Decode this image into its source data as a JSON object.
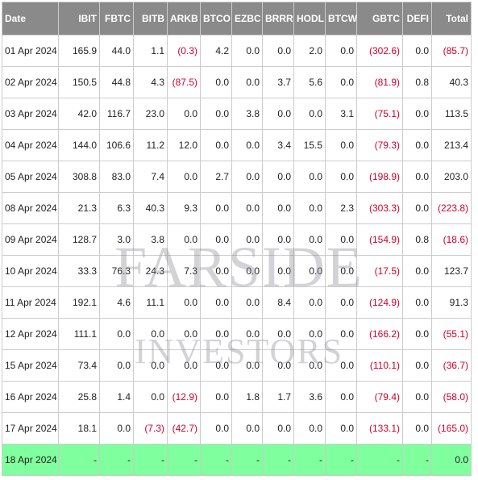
{
  "table": {
    "headers": [
      "Date",
      "IBIT",
      "FBTC",
      "BITB",
      "ARKB",
      "BTCO",
      "EZBC",
      "BRRR",
      "HODL",
      "BTCW",
      "GBTC",
      "DEFI",
      "Total"
    ],
    "rows": [
      [
        "01 Apr 2024",
        "165.9",
        "44.0",
        "1.1",
        "(0.3)",
        "4.2",
        "0.0",
        "0.0",
        "2.0",
        "0.0",
        "(302.6)",
        "0.0",
        "(85.7)"
      ],
      [
        "02 Apr 2024",
        "150.5",
        "44.8",
        "4.3",
        "(87.5)",
        "0.0",
        "0.0",
        "3.7",
        "5.6",
        "0.0",
        "(81.9)",
        "0.8",
        "40.3"
      ],
      [
        "03 Apr 2024",
        "42.0",
        "116.7",
        "23.0",
        "0.0",
        "0.0",
        "3.8",
        "0.0",
        "0.0",
        "3.1",
        "(75.1)",
        "0.0",
        "113.5"
      ],
      [
        "04 Apr 2024",
        "144.0",
        "106.6",
        "11.2",
        "12.0",
        "0.0",
        "0.0",
        "3.4",
        "15.5",
        "0.0",
        "(79.3)",
        "0.0",
        "213.4"
      ],
      [
        "05 Apr 2024",
        "308.8",
        "83.0",
        "7.4",
        "0.0",
        "2.7",
        "0.0",
        "0.0",
        "0.0",
        "0.0",
        "(198.9)",
        "0.0",
        "203.0"
      ],
      [
        "08 Apr 2024",
        "21.3",
        "6.3",
        "40.3",
        "9.3",
        "0.0",
        "0.0",
        "0.0",
        "0.0",
        "2.3",
        "(303.3)",
        "0.0",
        "(223.8)"
      ],
      [
        "09 Apr 2024",
        "128.7",
        "3.0",
        "3.8",
        "0.0",
        "0.0",
        "0.0",
        "0.0",
        "0.0",
        "0.0",
        "(154.9)",
        "0.8",
        "(18.6)"
      ],
      [
        "10 Apr 2024",
        "33.3",
        "76.3",
        "24.3",
        "7.3",
        "0.0",
        "0.0",
        "0.0",
        "0.0",
        "0.0",
        "(17.5)",
        "0.0",
        "123.7"
      ],
      [
        "11 Apr 2024",
        "192.1",
        "4.6",
        "11.1",
        "0.0",
        "0.0",
        "0.0",
        "8.4",
        "0.0",
        "0.0",
        "(124.9)",
        "0.0",
        "91.3"
      ],
      [
        "12 Apr 2024",
        "111.1",
        "0.0",
        "0.0",
        "0.0",
        "0.0",
        "0.0",
        "0.0",
        "0.0",
        "0.0",
        "(166.2)",
        "0.0",
        "(55.1)"
      ],
      [
        "15 Apr 2024",
        "73.4",
        "0.0",
        "0.0",
        "0.0",
        "0.0",
        "0.0",
        "0.0",
        "0.0",
        "0.0",
        "(110.1)",
        "0.0",
        "(36.7)"
      ],
      [
        "16 Apr 2024",
        "25.8",
        "1.4",
        "0.0",
        "(12.9)",
        "0.0",
        "1.8",
        "1.7",
        "3.6",
        "0.0",
        "(79.4)",
        "0.0",
        "(58.0)"
      ],
      [
        "17 Apr 2024",
        "18.1",
        "0.0",
        "(7.3)",
        "(42.7)",
        "0.0",
        "0.0",
        "0.0",
        "0.0",
        "0.0",
        "(133.1)",
        "0.0",
        "(165.0)"
      ],
      [
        "18 Apr 2024",
        "-",
        "-",
        "-",
        "-",
        "-",
        "-",
        "-",
        "-",
        "-",
        "-",
        "-",
        "0.0"
      ]
    ]
  },
  "watermark": {
    "line1": "FARSIDE",
    "line2": "INVESTORS"
  }
}
